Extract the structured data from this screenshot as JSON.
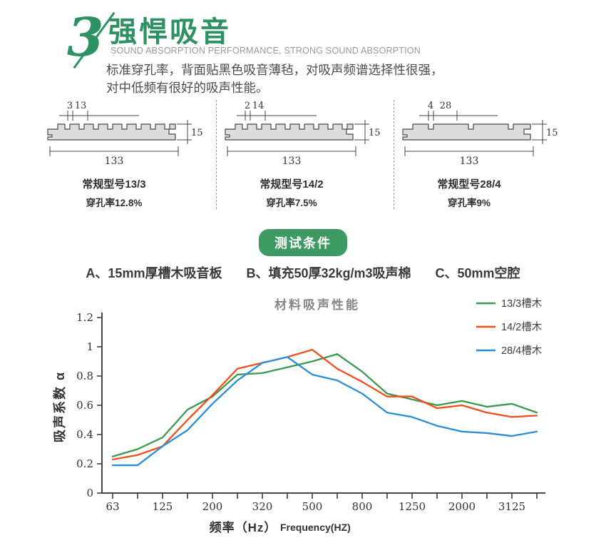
{
  "header": {
    "number": "3",
    "title": "强悍吸音",
    "subtitle": "SOUND ABSORPTION PERFORMANCE, STRONG SOUND ABSORPTION",
    "description_line1": "标准穿孔率，背面贴黑色吸音薄毡，对吸声频谱选择性很强，",
    "description_line2": "对中低频有很好的吸声性能。",
    "accent_color": "#2e9164"
  },
  "panels": [
    {
      "dim_small": "3",
      "dim_large": "13",
      "thickness": "15",
      "width": "133",
      "model": "常规型号13/3",
      "perforation": "穿孔率12.8%"
    },
    {
      "dim_small": "2",
      "dim_large": "14",
      "thickness": "15",
      "width": "133",
      "model": "常规型号14/2",
      "perforation": "穿孔率7.5%"
    },
    {
      "dim_small": "4",
      "dim_large": "28",
      "thickness": "15",
      "width": "133",
      "model": "常规型号28/4",
      "perforation": "穿孔率9%"
    }
  ],
  "test_conditions": {
    "badge": "测试条件",
    "badge_color": "#3d9a62",
    "items": [
      "A、15mm厚槽木吸音板",
      "B、填充50厚32kg/m3吸声棉",
      "C、50mm空腔"
    ]
  },
  "chart_data": {
    "type": "line",
    "title": "材料吸声性能",
    "ylabel": "吸声系数 α",
    "xlabel": "频率（Hz）",
    "xlabel_en": "Frequency(HZ)",
    "ylim": [
      0,
      1.2
    ],
    "grid": false,
    "legend_position": "top-right",
    "yticks": [
      0,
      0.2,
      0.4,
      0.6,
      0.8,
      1,
      1.2
    ],
    "ytick_labels": [
      "0",
      "0.2",
      "0.4",
      "0.6",
      "0.8",
      "1",
      "1.2"
    ],
    "x_major_labels": [
      "63",
      "125",
      "200",
      "320",
      "500",
      "800",
      "1250",
      "2000",
      "3125"
    ],
    "frequencies": [
      63,
      90,
      125,
      160,
      200,
      250,
      320,
      400,
      500,
      630,
      800,
      1000,
      1250,
      1600,
      2000,
      2500,
      3125,
      4000
    ],
    "series": [
      {
        "name": "13/3槽木",
        "color": "#3a9a4f",
        "values": [
          0.25,
          0.3,
          0.38,
          0.57,
          0.66,
          0.81,
          0.82,
          0.86,
          0.9,
          0.95,
          0.83,
          0.68,
          0.64,
          0.6,
          0.63,
          0.59,
          0.61,
          0.55
        ]
      },
      {
        "name": "14/2槽木",
        "color": "#f14e1f",
        "values": [
          0.23,
          0.26,
          0.32,
          0.5,
          0.67,
          0.85,
          0.89,
          0.93,
          0.98,
          0.85,
          0.76,
          0.66,
          0.66,
          0.58,
          0.6,
          0.55,
          0.52,
          0.53
        ]
      },
      {
        "name": "28/4槽木",
        "color": "#2b8dd9",
        "values": [
          0.19,
          0.19,
          0.32,
          0.43,
          0.61,
          0.77,
          0.89,
          0.93,
          0.81,
          0.77,
          0.68,
          0.55,
          0.52,
          0.46,
          0.42,
          0.41,
          0.39,
          0.42
        ]
      }
    ]
  }
}
